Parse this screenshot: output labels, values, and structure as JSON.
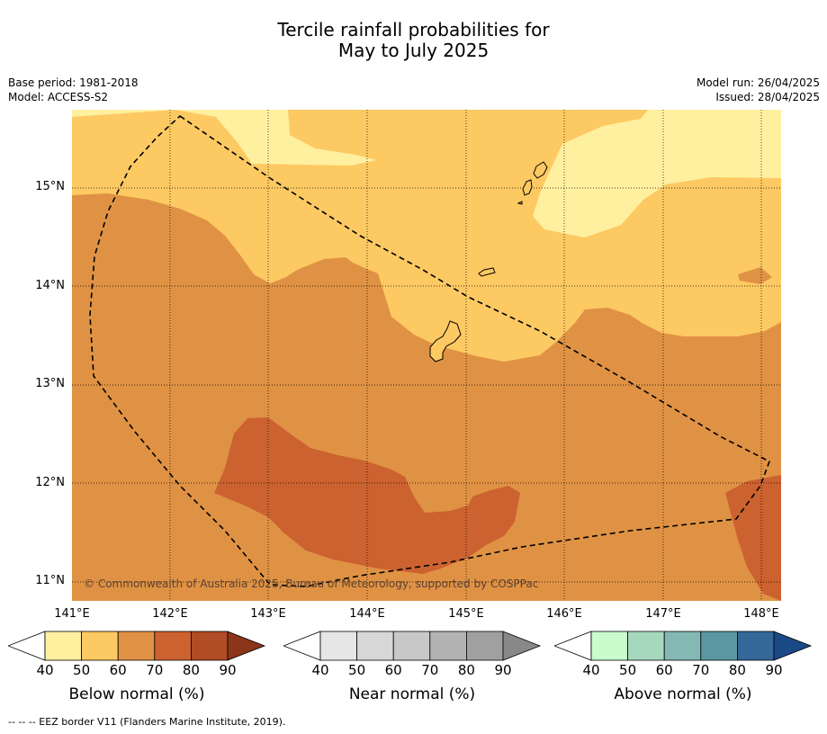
{
  "title_line1": "Tercile rainfall probabilities for",
  "title_line2": "May to July 2025",
  "meta_left": {
    "base_period": "Base period: 1981-2018",
    "model": "Model: ACCESS-S2"
  },
  "meta_right": {
    "model_run": "Model run: 26/04/2025",
    "issued": "Issued: 28/04/2025"
  },
  "copyright": "© Commonwealth of Australia 2025, Bureau of Meteorology, supported by COSPPac",
  "lat_labels": [
    "15°N",
    "14°N",
    "13°N",
    "12°N",
    "11°N"
  ],
  "lon_labels": [
    "141°E",
    "142°E",
    "143°E",
    "144°E",
    "145°E",
    "146°E",
    "147°E",
    "148°E"
  ],
  "colorbars": [
    {
      "label": "Below normal (%)",
      "ticks": [
        "40",
        "50",
        "60",
        "70",
        "80",
        "90"
      ],
      "colors": [
        "#fff0a0",
        "#fdc962",
        "#e09244",
        "#cc6230",
        "#b04c26",
        "#8c3518"
      ]
    },
    {
      "label": "Near normal (%)",
      "ticks": [
        "40",
        "50",
        "60",
        "70",
        "80",
        "90"
      ],
      "colors": [
        "#e6e6e6",
        "#d7d7d7",
        "#c8c8c8",
        "#b3b3b3",
        "#a0a0a0",
        "#888888"
      ]
    },
    {
      "label": "Above normal (%)",
      "ticks": [
        "40",
        "50",
        "60",
        "70",
        "80",
        "90"
      ],
      "colors": [
        "#c9fbcd",
        "#a6d8be",
        "#84b8b4",
        "#5b97a3",
        "#336898",
        "#194a86"
      ]
    }
  ],
  "footer": "--  --  -- EEZ border V11 (Flanders Marine Institute, 2019).",
  "map_colors": {
    "c50": "#fdc962",
    "c40": "#fff0a0",
    "c60": "#e09244",
    "c70": "#cc6230"
  }
}
